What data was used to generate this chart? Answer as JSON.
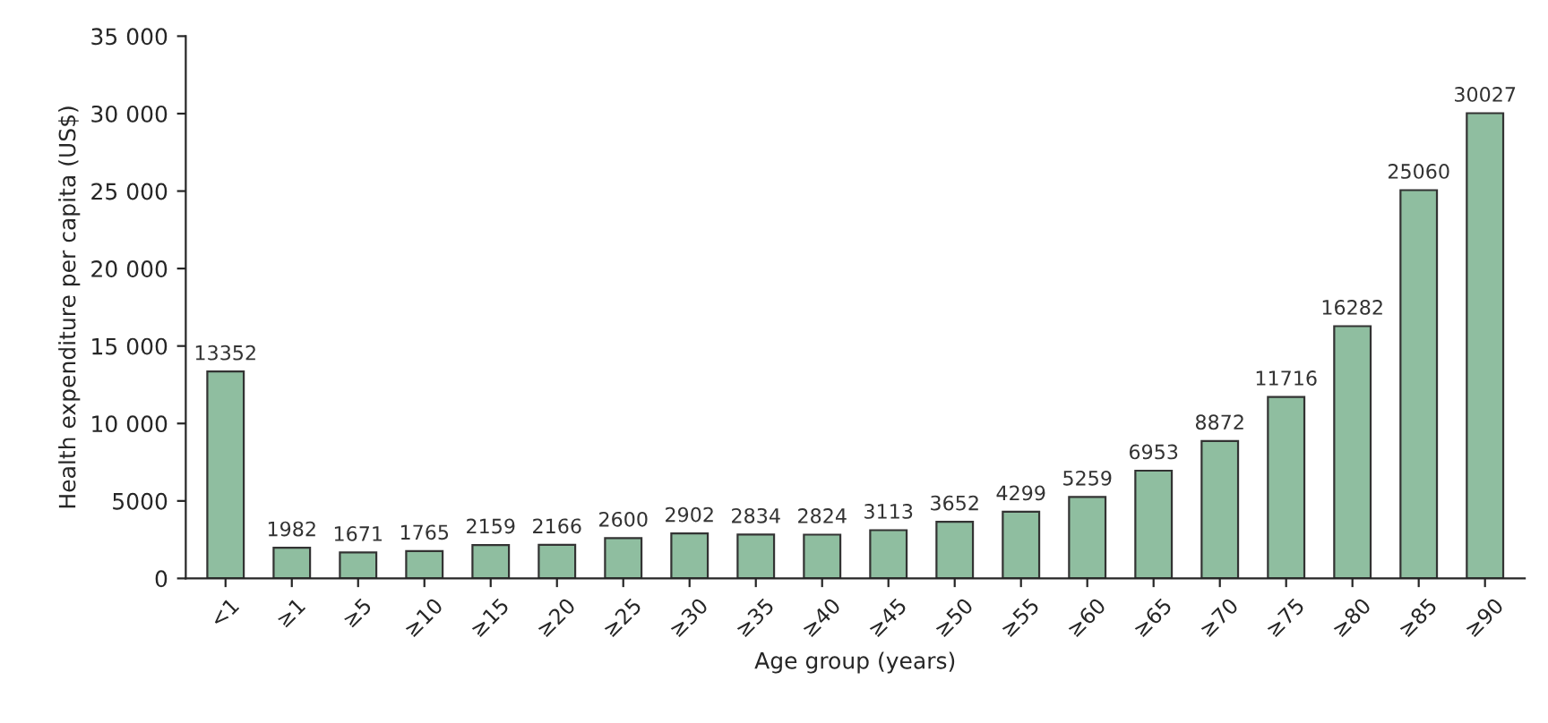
{
  "chart_data": {
    "type": "bar",
    "xlabel": "Age group (years)",
    "ylabel": "Health expenditure per capita (US$)",
    "categories": [
      "<1",
      "≥1",
      "≥5",
      "≥10",
      "≥15",
      "≥20",
      "≥25",
      "≥30",
      "≥35",
      "≥40",
      "≥45",
      "≥50",
      "≥55",
      "≥60",
      "≥65",
      "≥70",
      "≥75",
      "≥80",
      "≥85",
      "≥90"
    ],
    "values": [
      13352,
      1982,
      1671,
      1765,
      2159,
      2166,
      2600,
      2902,
      2834,
      2824,
      3113,
      3652,
      4299,
      5259,
      6953,
      8872,
      11716,
      16282,
      25060,
      30027
    ],
    "color": "#8fbea0",
    "ylim": [
      0,
      35000
    ],
    "yticks": [
      0,
      5000,
      {
        "value": 10000,
        "label": "10 000"
      },
      {
        "value": 15000,
        "label": "15 000"
      },
      {
        "value": 20000,
        "label": "20 000"
      },
      {
        "value": 25000,
        "label": "25 000"
      },
      {
        "value": 30000,
        "label": "30 000"
      },
      {
        "value": 35000,
        "label": "35 000"
      }
    ],
    "data_labels": true,
    "grid": false,
    "legend": false
  }
}
